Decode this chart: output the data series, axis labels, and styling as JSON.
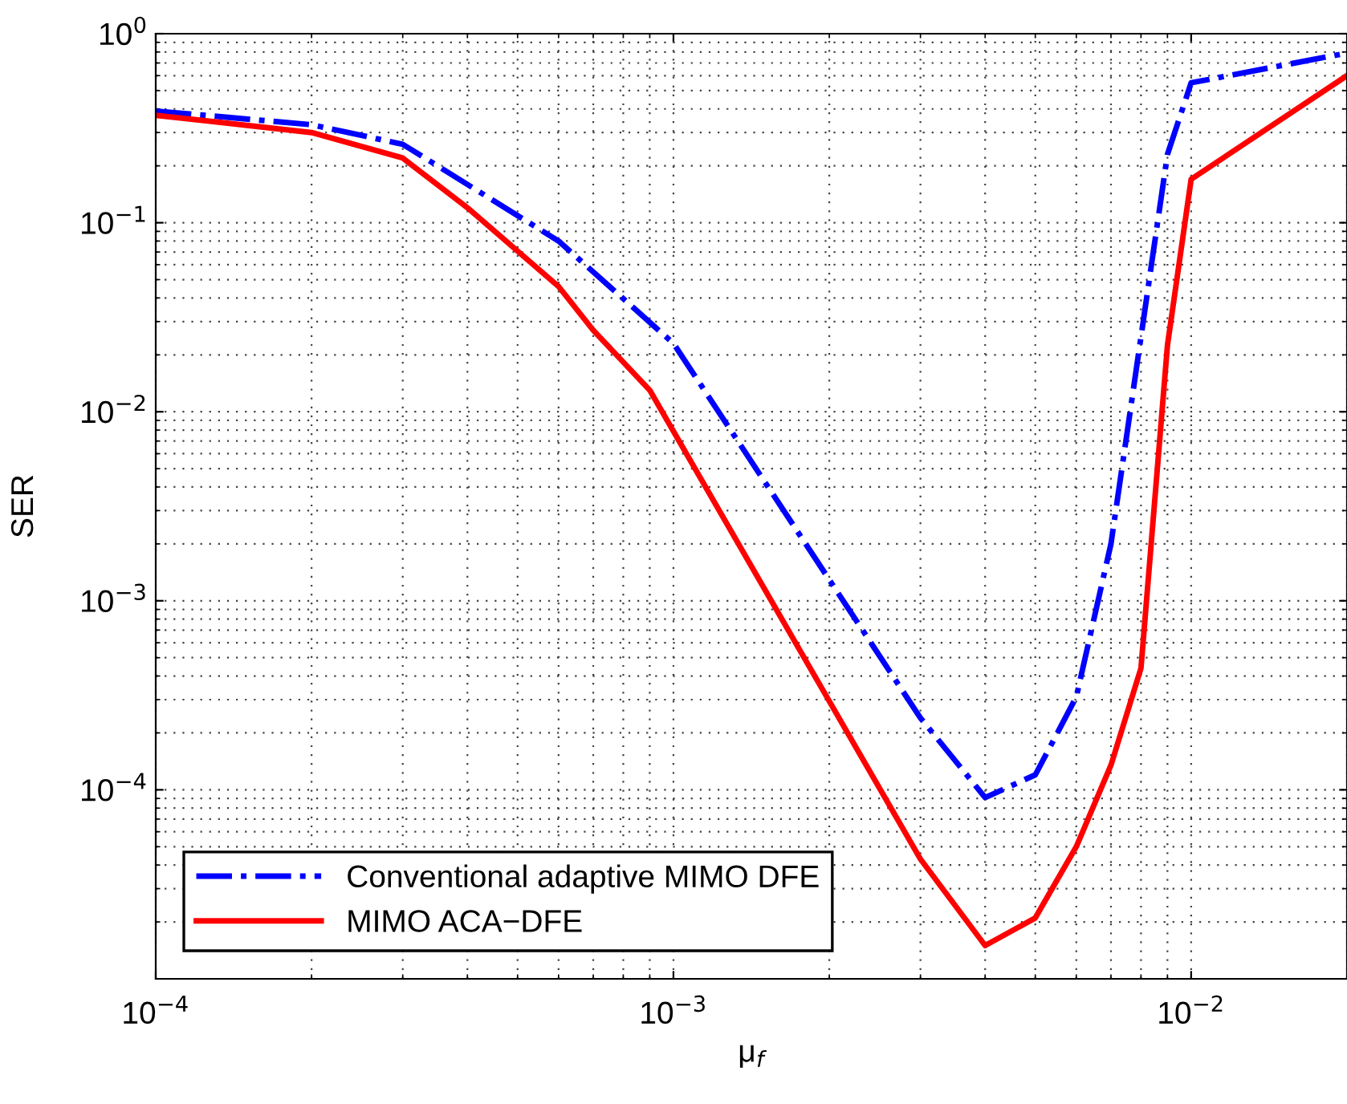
{
  "chart_data": {
    "type": "line",
    "xlabel": "μ$_{f}$",
    "ylabel": "SER",
    "log": "xy",
    "grid": true,
    "legend": "bottom left",
    "marker": "none",
    "xlim": [
      0.0001,
      0.02
    ],
    "ylim": [
      1e-05,
      1
    ],
    "xticks": [
      {
        "value": 0.0001,
        "label": "10$^{−4}$"
      },
      {
        "value": 0.001,
        "label": "10$^{−3}$"
      },
      {
        "value": 0.01,
        "label": "10$^{−2}$"
      }
    ],
    "yticks": [
      {
        "value": 0.0001,
        "label": "10$^{−4}$"
      },
      {
        "value": 0.001,
        "label": "10$^{−3}$"
      },
      {
        "value": 0.01,
        "label": "10$^{−2}$"
      },
      {
        "value": 0.1,
        "label": "10$^{−1}$"
      },
      {
        "value": 1,
        "label": "10$^{0}$"
      }
    ],
    "series": [
      {
        "name": "Conventional adaptive MIMO DFE",
        "color": "#0000ff",
        "line_style": "dashdot",
        "x": [
          0.0001,
          0.0002,
          0.0003,
          0.0006,
          0.001,
          0.003,
          0.004,
          0.005,
          0.006,
          0.007,
          0.009,
          0.01,
          0.02
        ],
        "values": [
          0.39,
          0.33,
          0.26,
          0.08,
          0.023,
          0.00024,
          9.1e-05,
          0.00012,
          0.00031,
          0.002,
          0.23,
          0.55,
          0.79
        ]
      },
      {
        "name": "MIMO ACA−DFE",
        "color": "#ff0000",
        "line_style": "solid",
        "x": [
          0.0001,
          0.0002,
          0.0003,
          0.0004,
          0.0006,
          0.0007,
          0.0009,
          0.003,
          0.004,
          0.005,
          0.006,
          0.007,
          0.008,
          0.009,
          0.01,
          0.02
        ],
        "values": [
          0.37,
          0.3,
          0.22,
          0.12,
          0.046,
          0.027,
          0.013,
          4.3e-05,
          1.5e-05,
          2.1e-05,
          5e-05,
          0.000135,
          0.00044,
          0.0225,
          0.17,
          0.6
        ]
      }
    ]
  }
}
